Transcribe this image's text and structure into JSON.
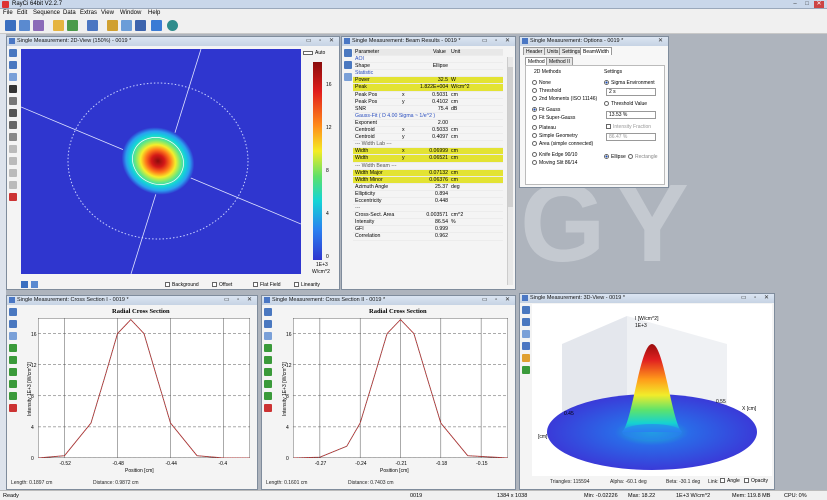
{
  "app": {
    "title": "RayCi 64bit V2.2.7"
  },
  "menu": [
    "File",
    "Edit",
    "Sequence",
    "Data",
    "Extras",
    "View",
    "Window",
    "Help"
  ],
  "watermark": "GY",
  "view2d": {
    "title": "Single Measurement: 2D-View (150%) - 0019 *",
    "auto_label": "Auto",
    "colorbar_ticks": [
      "16",
      "12",
      "8",
      "4",
      "0"
    ],
    "colorbar_unit1": "1E+3",
    "colorbar_unit2": "W/cm^2",
    "options": [
      "Background",
      "Offset",
      "Flat Field",
      "Linearity"
    ]
  },
  "results": {
    "title": "Single Measurement: Beam Results - 0019 *",
    "headers": {
      "param": "Parameter",
      "value": "Value",
      "unit": "Unit"
    },
    "rows": [
      {
        "p": "AOI",
        "x": "",
        "v": "",
        "u": "",
        "kind": "sec"
      },
      {
        "p": "Shape",
        "x": "",
        "v": "Ellipse",
        "u": "",
        "kind": ""
      },
      {
        "p": "Statistic",
        "x": "",
        "v": "",
        "u": "",
        "kind": "sec"
      },
      {
        "p": "Power",
        "x": "",
        "v": "32.5",
        "u": "W",
        "kind": "hl"
      },
      {
        "p": "Peak",
        "x": "",
        "v": "1.822E+004",
        "u": "W/cm^2",
        "kind": "hl"
      },
      {
        "p": "Peak Pos",
        "x": "x",
        "v": "0.5031",
        "u": "cm",
        "kind": ""
      },
      {
        "p": "Peak Pos",
        "x": "y",
        "v": "0.4102",
        "u": "cm",
        "kind": ""
      },
      {
        "p": "SNR",
        "x": "",
        "v": "75.4",
        "u": "dB",
        "kind": ""
      },
      {
        "p": "Gauss-Fit ( D 4.00 Sigma ~ 1/e^2 )",
        "x": "",
        "v": "",
        "u": "",
        "kind": "sec"
      },
      {
        "p": "Exponent",
        "x": "",
        "v": "2.00",
        "u": "",
        "kind": ""
      },
      {
        "p": "Centroid",
        "x": "x",
        "v": "0.5033",
        "u": "cm",
        "kind": ""
      },
      {
        "p": "Centroid",
        "x": "y",
        "v": "0.4097",
        "u": "cm",
        "kind": ""
      },
      {
        "p": "--- Width Lab ---",
        "x": "",
        "v": "",
        "u": "",
        "kind": "sub"
      },
      {
        "p": "Width",
        "x": "x",
        "v": "0.06999",
        "u": "cm",
        "kind": "hl"
      },
      {
        "p": "Width",
        "x": "y",
        "v": "0.06521",
        "u": "cm",
        "kind": "hl"
      },
      {
        "p": "--- Width Beam ---",
        "x": "",
        "v": "",
        "u": "",
        "kind": "sub"
      },
      {
        "p": "Width Major",
        "x": "",
        "v": "0.07132",
        "u": "cm",
        "kind": "hl"
      },
      {
        "p": "Width Minor",
        "x": "",
        "v": "0.06376",
        "u": "cm",
        "kind": "hl"
      },
      {
        "p": "Azimuth Angle",
        "x": "",
        "v": "25.37",
        "u": "deg",
        "kind": ""
      },
      {
        "p": "Ellipticity",
        "x": "",
        "v": "0.894",
        "u": "",
        "kind": ""
      },
      {
        "p": "Eccentricity",
        "x": "",
        "v": "0.448",
        "u": "",
        "kind": ""
      },
      {
        "p": "---",
        "x": "",
        "v": "",
        "u": "",
        "kind": "sub"
      },
      {
        "p": "Cross-Sect. Area",
        "x": "",
        "v": "0.003571",
        "u": "cm^2",
        "kind": ""
      },
      {
        "p": "Intensity",
        "x": "",
        "v": "86.54",
        "u": "%",
        "kind": ""
      },
      {
        "p": "GFI",
        "x": "",
        "v": "0.999",
        "u": "",
        "kind": ""
      },
      {
        "p": "Correlation",
        "x": "",
        "v": "0.962",
        "u": "",
        "kind": ""
      }
    ]
  },
  "options": {
    "title": "Single Measurement: Options - 0019 *",
    "tabs": [
      "Header",
      "Units",
      "Settings",
      "BeamWidth"
    ],
    "subtabs": [
      "Method I",
      "Method II"
    ],
    "methods_label": "2D Methods",
    "settings_label": "Settings",
    "methods": [
      {
        "label": "None",
        "on": false
      },
      {
        "label": "Threshold",
        "on": false
      },
      {
        "label": "2nd Moments (ISO 11146)",
        "on": false
      },
      {
        "label": "Fit Gauss",
        "on": true
      },
      {
        "label": "Fit Super-Gauss",
        "on": false
      },
      {
        "label": "Plateau",
        "on": false
      },
      {
        "label": "Simple Geometry",
        "on": false
      },
      {
        "label": "Area (simple connected)",
        "on": false
      },
      {
        "label": "Knife Edge 90/10",
        "on": false
      },
      {
        "label": "Moving Slit 86/14",
        "on": false
      }
    ],
    "sigma_env": "Sigma Environment",
    "sigma_value": "2 s",
    "threshold": "Threshold Value",
    "threshold_value": "13.53 %",
    "intensity_fraction": "Intensity Fraction",
    "intensity_value": "86.47 %",
    "ellipse": "Ellipse",
    "rectangle": "Rectangle"
  },
  "cross1": {
    "title": "Single Measurement: Cross Section I - 0019 *",
    "chart_title": "Radial Cross Section",
    "ylabel": "Intensity 1E+3 [W/cm^2]",
    "xlabel": "Position [cm]",
    "xticks": [
      "-0.52",
      "-0.48",
      "-0.44",
      "-0.4"
    ],
    "yticks": [
      "16",
      "12",
      "8",
      "4",
      "0"
    ],
    "length": "Length: 0.1897 cm",
    "distance": "Distance: 0.9872 cm"
  },
  "cross2": {
    "title": "Single Measurement: Cross Section II - 0019 *",
    "chart_title": "Radial Cross Section",
    "ylabel": "Intensity 1E+3 [W/cm^2]",
    "xlabel": "Position [cm]",
    "xticks": [
      "-0.27",
      "-0.24",
      "-0.21",
      "-0.18",
      "-0.15"
    ],
    "yticks": [
      "16",
      "12",
      "8",
      "4",
      "0"
    ],
    "length": "Length: 0.1601 cm",
    "distance": "Distance: 0.7403 cm"
  },
  "view3d": {
    "title": "Single Measurement: 3D-View - 0019 *",
    "zlabel": "I [W/cm^2]",
    "zunit": "1E+3",
    "xaxis": "X [cm]",
    "yaxis": "[cm]",
    "tick1": "0.45",
    "tick2": "0.55",
    "triangles": "Triangles: 115594",
    "alpha": "Alpha: -60.1 deg",
    "beta": "Beta: -30.1 deg",
    "link": "Link:",
    "angle": "Angle",
    "opacity": "Opacity"
  },
  "statusbar": {
    "ready": "Ready",
    "frame": "0019",
    "size": "1384 x 1038",
    "min": "Min: -0.02226",
    "max": "Max: 18.22",
    "unit": "1E+3 W/cm^2",
    "mem": "Mem: 119.8 MB",
    "cpu": "CPU: 0%"
  },
  "chart_data": [
    {
      "type": "line",
      "title": "Radial Cross Section",
      "xlabel": "Position [cm]",
      "ylabel": "Intensity 1E+3 [W/cm^2]",
      "xlim": [
        -0.54,
        -0.38
      ],
      "ylim": [
        0,
        18
      ],
      "series": [
        {
          "x": [
            -0.54,
            -0.52,
            -0.5,
            -0.49,
            -0.48,
            -0.47,
            -0.46,
            -0.45,
            -0.44,
            -0.42,
            -0.4,
            -0.38
          ],
          "values": [
            0.0,
            0.3,
            4.5,
            10.2,
            16.0,
            17.8,
            16.0,
            10.2,
            4.5,
            0.3,
            0.0,
            0.0
          ]
        }
      ]
    },
    {
      "type": "line",
      "title": "Radial Cross Section",
      "xlabel": "Position [cm]",
      "ylabel": "Intensity 1E+3 [W/cm^2]",
      "xlim": [
        -0.29,
        -0.13
      ],
      "ylim": [
        0,
        18
      ],
      "series": [
        {
          "x": [
            -0.29,
            -0.27,
            -0.25,
            -0.24,
            -0.23,
            -0.22,
            -0.21,
            -0.2,
            -0.19,
            -0.18,
            -0.16,
            -0.13
          ],
          "values": [
            0.0,
            0.1,
            1.5,
            4.5,
            10.2,
            16.0,
            17.8,
            16.0,
            10.2,
            4.5,
            0.3,
            0.0
          ]
        }
      ]
    }
  ]
}
